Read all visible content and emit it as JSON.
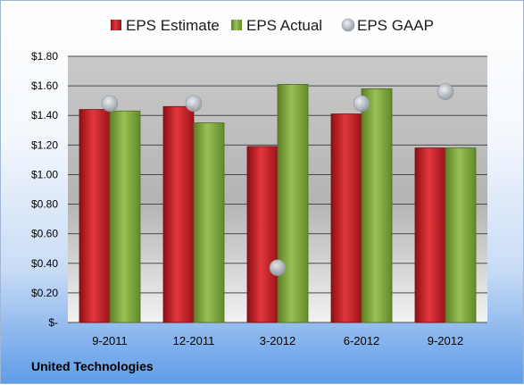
{
  "company": "United Technologies",
  "chart_data": {
    "type": "bar",
    "categories": [
      "9-2011",
      "12-2011",
      "3-2012",
      "6-2012",
      "9-2012"
    ],
    "series": [
      {
        "name": "EPS Estimate",
        "kind": "bar",
        "color": "#c0232a",
        "values": [
          1.44,
          1.46,
          1.19,
          1.41,
          1.18
        ]
      },
      {
        "name": "EPS Actual",
        "kind": "bar",
        "color": "#7aa43a",
        "values": [
          1.43,
          1.35,
          1.61,
          1.58,
          1.18
        ]
      },
      {
        "name": "EPS GAAP",
        "kind": "scatter",
        "color": "#a9b3bd",
        "values": [
          1.48,
          1.48,
          0.37,
          1.48,
          1.56
        ]
      }
    ],
    "ylim": [
      0,
      1.8
    ],
    "yticks": [
      0,
      0.2,
      0.4,
      0.6,
      0.8,
      1.0,
      1.2,
      1.4,
      1.6,
      1.8
    ],
    "ytick_labels": [
      "$-",
      "$0.20",
      "$0.40",
      "$0.60",
      "$0.80",
      "$1.00",
      "$1.20",
      "$1.40",
      "$1.60",
      "$1.80"
    ],
    "grid": true,
    "legend_position": "top"
  }
}
